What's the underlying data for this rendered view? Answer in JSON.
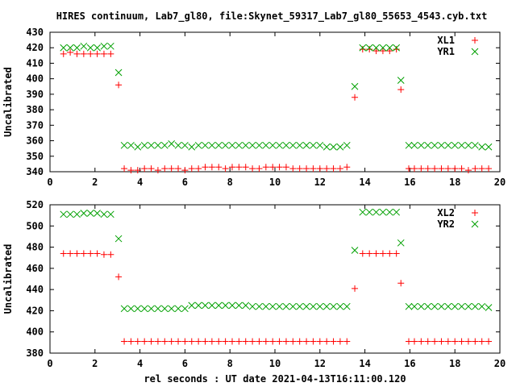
{
  "chart_data": [
    {
      "type": "scatter",
      "title": "HIRES continuum, Lab7_gl80, file:Skynet_59317_Lab7_gl80_55653_4543.cyb.txt",
      "ylabel": "Uncalibrated",
      "xlim": [
        0,
        20
      ],
      "ylim": [
        340,
        430
      ],
      "xticks": [
        0,
        2,
        4,
        6,
        8,
        10,
        12,
        14,
        16,
        18,
        20
      ],
      "yticks": [
        340,
        350,
        360,
        370,
        380,
        390,
        400,
        410,
        420,
        430
      ],
      "legend": "top-right",
      "series": [
        {
          "name": "XL1",
          "color": "#ff0000",
          "marker": "plus",
          "x": [
            0.6,
            0.9,
            1.2,
            1.5,
            1.8,
            2.1,
            2.4,
            2.7,
            3.05,
            3.3,
            3.6,
            3.9,
            4.2,
            4.5,
            4.8,
            5.1,
            5.4,
            5.7,
            6.0,
            6.3,
            6.6,
            6.9,
            7.2,
            7.5,
            7.8,
            8.1,
            8.4,
            8.7,
            9.0,
            9.3,
            9.6,
            9.9,
            10.2,
            10.5,
            10.8,
            11.1,
            11.4,
            11.7,
            12.0,
            12.3,
            12.6,
            12.9,
            13.2,
            13.55,
            13.9,
            14.2,
            14.5,
            14.8,
            15.1,
            15.4,
            15.6,
            15.95,
            16.2,
            16.5,
            16.8,
            17.1,
            17.4,
            17.7,
            18.0,
            18.3,
            18.6,
            18.9,
            19.2,
            19.5
          ],
          "y": [
            416,
            417,
            416,
            416,
            416,
            416,
            416,
            416,
            396,
            342,
            341,
            341,
            342,
            342,
            341,
            342,
            342,
            342,
            341,
            342,
            342,
            343,
            343,
            343,
            342,
            343,
            343,
            343,
            342,
            342,
            343,
            343,
            343,
            343,
            342,
            342,
            342,
            342,
            342,
            342,
            342,
            342,
            343,
            388,
            419,
            419,
            418,
            418,
            418,
            419,
            393,
            342,
            342,
            342,
            342,
            342,
            342,
            342,
            342,
            342,
            341,
            342,
            342,
            342
          ]
        },
        {
          "name": "YR1",
          "color": "#00a000",
          "marker": "cross",
          "x": [
            0.6,
            0.9,
            1.2,
            1.5,
            1.8,
            2.1,
            2.4,
            2.7,
            3.05,
            3.3,
            3.6,
            3.9,
            4.2,
            4.5,
            4.8,
            5.1,
            5.4,
            5.7,
            6.0,
            6.3,
            6.6,
            6.9,
            7.2,
            7.5,
            7.8,
            8.1,
            8.4,
            8.7,
            9.0,
            9.3,
            9.6,
            9.9,
            10.2,
            10.5,
            10.8,
            11.1,
            11.4,
            11.7,
            12.0,
            12.3,
            12.6,
            12.9,
            13.2,
            13.55,
            13.9,
            14.2,
            14.5,
            14.8,
            15.1,
            15.4,
            15.6,
            15.95,
            16.2,
            16.5,
            16.8,
            17.1,
            17.4,
            17.7,
            18.0,
            18.3,
            18.6,
            18.9,
            19.2,
            19.5
          ],
          "y": [
            420,
            420,
            420,
            421,
            420,
            420,
            421,
            421,
            404,
            357,
            357,
            356,
            357,
            357,
            357,
            357,
            358,
            357,
            357,
            356,
            357,
            357,
            357,
            357,
            357,
            357,
            357,
            357,
            357,
            357,
            357,
            357,
            357,
            357,
            357,
            357,
            357,
            357,
            357,
            356,
            356,
            356,
            357,
            395,
            420,
            420,
            420,
            420,
            420,
            420,
            399,
            357,
            357,
            357,
            357,
            357,
            357,
            357,
            357,
            357,
            357,
            357,
            356,
            356
          ]
        }
      ]
    },
    {
      "type": "scatter",
      "title": "",
      "ylabel": "Uncalibrated",
      "xlabel": "rel seconds : UT date 2021-04-13T16:11:00.120",
      "xlim": [
        0,
        20
      ],
      "ylim": [
        380,
        520
      ],
      "xticks": [
        0,
        2,
        4,
        6,
        8,
        10,
        12,
        14,
        16,
        18,
        20
      ],
      "yticks": [
        380,
        400,
        420,
        440,
        460,
        480,
        500,
        520
      ],
      "legend": "top-right",
      "series": [
        {
          "name": "XL2",
          "color": "#ff0000",
          "marker": "plus",
          "x": [
            0.6,
            0.9,
            1.2,
            1.5,
            1.8,
            2.1,
            2.4,
            2.7,
            3.05,
            3.3,
            3.6,
            3.9,
            4.2,
            4.5,
            4.8,
            5.1,
            5.4,
            5.7,
            6.0,
            6.3,
            6.6,
            6.9,
            7.2,
            7.5,
            7.8,
            8.1,
            8.4,
            8.7,
            9.0,
            9.3,
            9.6,
            9.9,
            10.2,
            10.5,
            10.8,
            11.1,
            11.4,
            11.7,
            12.0,
            12.3,
            12.6,
            12.9,
            13.2,
            13.55,
            13.9,
            14.2,
            14.5,
            14.8,
            15.1,
            15.4,
            15.6,
            15.95,
            16.2,
            16.5,
            16.8,
            17.1,
            17.4,
            17.7,
            18.0,
            18.3,
            18.6,
            18.9,
            19.2,
            19.5
          ],
          "y": [
            474,
            474,
            474,
            474,
            474,
            474,
            473,
            473,
            452,
            391,
            391,
            391,
            391,
            391,
            391,
            391,
            391,
            391,
            391,
            391,
            391,
            391,
            391,
            391,
            391,
            391,
            391,
            391,
            391,
            391,
            391,
            391,
            391,
            391,
            391,
            391,
            391,
            391,
            391,
            391,
            391,
            391,
            391,
            441,
            474,
            474,
            474,
            474,
            474,
            474,
            446,
            391,
            391,
            391,
            391,
            391,
            391,
            391,
            391,
            391,
            391,
            391,
            391,
            391
          ]
        },
        {
          "name": "YR2",
          "color": "#00a000",
          "marker": "cross",
          "x": [
            0.6,
            0.9,
            1.2,
            1.5,
            1.8,
            2.1,
            2.4,
            2.7,
            3.05,
            3.3,
            3.6,
            3.9,
            4.2,
            4.5,
            4.8,
            5.1,
            5.4,
            5.7,
            6.0,
            6.3,
            6.6,
            6.9,
            7.2,
            7.5,
            7.8,
            8.1,
            8.4,
            8.7,
            9.0,
            9.3,
            9.6,
            9.9,
            10.2,
            10.5,
            10.8,
            11.1,
            11.4,
            11.7,
            12.0,
            12.3,
            12.6,
            12.9,
            13.2,
            13.55,
            13.9,
            14.2,
            14.5,
            14.8,
            15.1,
            15.4,
            15.6,
            15.95,
            16.2,
            16.5,
            16.8,
            17.1,
            17.4,
            17.7,
            18.0,
            18.3,
            18.6,
            18.9,
            19.2,
            19.5
          ],
          "y": [
            511,
            511,
            511,
            512,
            512,
            512,
            511,
            511,
            488,
            422,
            422,
            422,
            422,
            422,
            422,
            422,
            422,
            422,
            422,
            425,
            425,
            425,
            425,
            425,
            425,
            425,
            425,
            425,
            424,
            424,
            424,
            424,
            424,
            424,
            424,
            424,
            424,
            424,
            424,
            424,
            424,
            424,
            424,
            477,
            513,
            513,
            513,
            513,
            513,
            513,
            484,
            424,
            424,
            424,
            424,
            424,
            424,
            424,
            424,
            424,
            424,
            424,
            424,
            423
          ]
        }
      ]
    }
  ]
}
